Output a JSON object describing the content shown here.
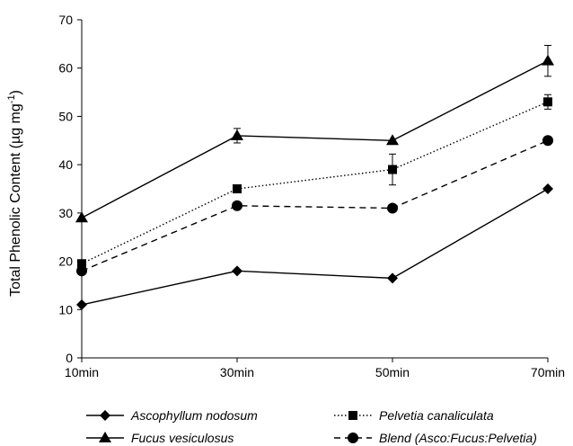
{
  "chart_data": {
    "type": "line",
    "categories": [
      "10min",
      "30min",
      "50min",
      "70min"
    ],
    "ylabel_main": "Total Phenolic Content (µg mg",
    "ylabel_sup": "-1",
    "ylabel_end": ")",
    "yticks": [
      "0",
      "10",
      "20",
      "30",
      "40",
      "50",
      "60",
      "70"
    ],
    "ylim": [
      0,
      70
    ],
    "grid": false,
    "legend_position": "bottom",
    "series": [
      {
        "name": "Ascophyllum nodosum",
        "marker": "diamond",
        "dash": "solid",
        "values": [
          11,
          18,
          16.5,
          35
        ],
        "errors": [
          0,
          0,
          0,
          0
        ]
      },
      {
        "name": "Pelvetia canaliculata",
        "marker": "square",
        "dash": "dotted",
        "values": [
          19.5,
          35,
          39,
          53
        ],
        "errors": [
          0,
          0,
          3.2,
          1.5
        ]
      },
      {
        "name": "Fucus vesiculosus",
        "marker": "triangle",
        "dash": "solid",
        "values": [
          29,
          46,
          45,
          61.5
        ],
        "errors": [
          0,
          1.5,
          0,
          3.2
        ]
      },
      {
        "name": "Blend (Asco:Fucus:Pelvetia)",
        "marker": "circle",
        "dash": "dashed",
        "values": [
          18,
          31.5,
          31,
          45
        ],
        "errors": [
          0,
          0,
          0,
          0
        ]
      }
    ]
  }
}
